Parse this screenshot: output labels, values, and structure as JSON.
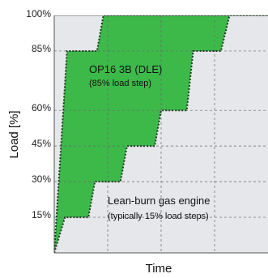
{
  "chart_data": {
    "type": "area",
    "xlabel": "Time",
    "ylabel": "Load [%]",
    "ylim": [
      0,
      100
    ],
    "xlim": [
      0,
      10
    ],
    "yticks": [
      "15%",
      "30%",
      "45%",
      "60%",
      "85%",
      "100%"
    ],
    "ytick_values": [
      15,
      30,
      45,
      60,
      85,
      100
    ],
    "grid": true,
    "series": [
      {
        "name": "OP16 3B (DLE)",
        "note": "(85% load step)",
        "color": "#3db94a",
        "points": [
          [
            0,
            0
          ],
          [
            0.6,
            85
          ],
          [
            2.0,
            85
          ],
          [
            2.3,
            100
          ],
          [
            10,
            100
          ]
        ]
      },
      {
        "name": "Lean-burn gas engine",
        "note": "(typically 15% load steps)",
        "color": "#e6e7ea",
        "points": [
          [
            0,
            0
          ],
          [
            0.5,
            15
          ],
          [
            1.6,
            15
          ],
          [
            1.9,
            30
          ],
          [
            3.1,
            30
          ],
          [
            3.4,
            45
          ],
          [
            4.7,
            45
          ],
          [
            5.0,
            60
          ],
          [
            6.2,
            60
          ],
          [
            6.5,
            85
          ],
          [
            7.8,
            85
          ],
          [
            8.2,
            100
          ],
          [
            10,
            100
          ]
        ]
      }
    ]
  }
}
